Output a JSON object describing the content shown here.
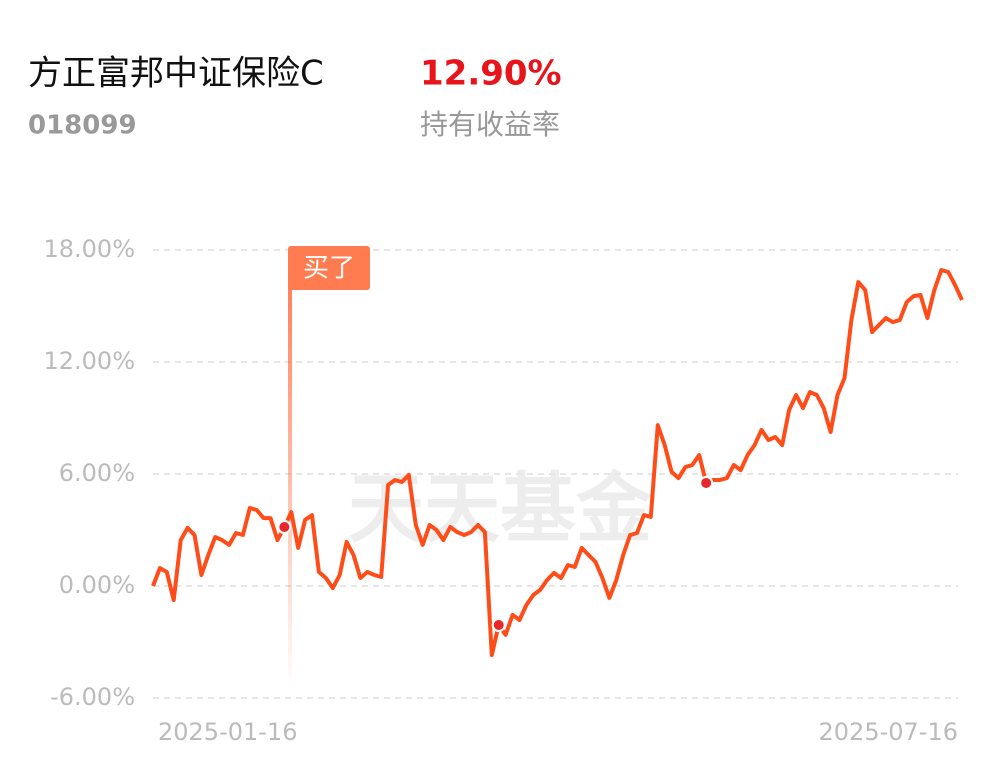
{
  "header": {
    "fund_name": "方正富邦中证保险C",
    "fund_code": "018099",
    "return": "12.90%",
    "return_label": "持有收益率"
  },
  "chart_data": {
    "type": "line",
    "watermark": "天天基金",
    "annotation": "买了",
    "categories": [
      "2025-01-16",
      null,
      null,
      null,
      null,
      null,
      null,
      null,
      null,
      null,
      null,
      null,
      null,
      null,
      null,
      null,
      null,
      null,
      null,
      null,
      null,
      null,
      null,
      null,
      null,
      null,
      null,
      null,
      null,
      null,
      null,
      null,
      null,
      null,
      null,
      null,
      null,
      null,
      null,
      null,
      null,
      null,
      null,
      null,
      null,
      null,
      null,
      null,
      null,
      null,
      null,
      null,
      null,
      null,
      null,
      null,
      null,
      null,
      null,
      null,
      null,
      null,
      null,
      null,
      null,
      null,
      null,
      null,
      null,
      null,
      null,
      null,
      null,
      null,
      null,
      null,
      null,
      null,
      null,
      null,
      null,
      null,
      null,
      null,
      null,
      null,
      null,
      null,
      null,
      null,
      null,
      null,
      null,
      null,
      null,
      null,
      null,
      null,
      null,
      null,
      null,
      null,
      null,
      null,
      null,
      null,
      null,
      null,
      null,
      null,
      null,
      null,
      null,
      null,
      null,
      null,
      null,
      "2025-07-16"
    ],
    "series": [
      {
        "color": "#ff4d1a",
        "values": [
          0,
          0.96,
          0.75,
          -0.75,
          2.46,
          3.11,
          2.73,
          0.59,
          1.66,
          2.62,
          2.46,
          2.2,
          2.84,
          2.73,
          4.18,
          4.07,
          3.64,
          3.64,
          2.46,
          3.16,
          3.96,
          2.04,
          3.54,
          3.8,
          0.75,
          0.43,
          -0.11,
          0.59,
          2.36,
          1.66,
          0.43,
          0.75,
          0.59,
          0.48,
          5.41,
          5.68,
          5.57,
          5.95,
          3.27,
          2.2,
          3.27,
          3.0,
          2.46,
          3.16,
          2.89,
          2.73,
          2.89,
          3.27,
          2.89,
          -3.7,
          -2.09,
          -2.62,
          -1.55,
          -1.82,
          -1.02,
          -0.48,
          -0.21,
          0.32,
          0.7,
          0.43,
          1.12,
          1.02,
          2.04,
          1.66,
          1.29,
          0.43,
          -0.64,
          0.32,
          1.66,
          2.73,
          2.84,
          3.8,
          3.7,
          8.62,
          7.55,
          6.11,
          5.78,
          6.37,
          6.48,
          7.02,
          5.52,
          5.68,
          5.68,
          5.78,
          6.48,
          6.21,
          7.02,
          7.55,
          8.36,
          7.82,
          7.98,
          7.55,
          9.43,
          10.23,
          9.53,
          10.39,
          10.23,
          9.53,
          8.25,
          10.23,
          11.14,
          14.25,
          16.28,
          15.85,
          13.6,
          13.98,
          14.35,
          14.14,
          14.25,
          15.21,
          15.53,
          15.59,
          14.35,
          15.85,
          16.93,
          16.82,
          16.12,
          15.32
        ]
      }
    ],
    "ylim": [
      -6,
      18
    ],
    "yticks": [
      {
        "value": -6,
        "label": "-6.00%"
      },
      {
        "value": 0,
        "label": "0.00%"
      },
      {
        "value": 6,
        "label": "6.00%"
      },
      {
        "value": 12,
        "label": "12.00%"
      },
      {
        "value": 18,
        "label": "18.00%"
      }
    ],
    "grid": true
  }
}
